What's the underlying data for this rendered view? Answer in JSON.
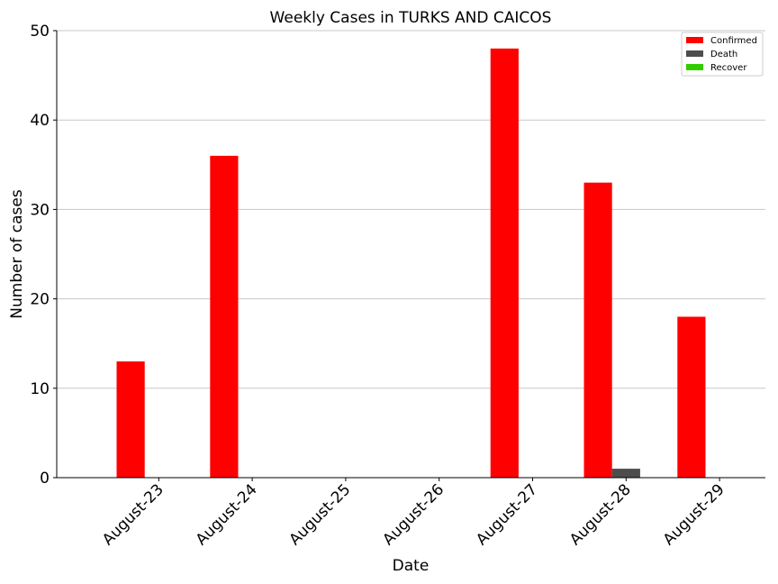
{
  "chart_data": {
    "type": "bar",
    "title": "Weekly Cases in TURKS AND CAICOS",
    "xlabel": "Date",
    "ylabel": "Number of cases",
    "categories": [
      "August-23",
      "August-24",
      "August-25",
      "August-26",
      "August-27",
      "August-28",
      "August-29"
    ],
    "series": [
      {
        "name": "Confirmed",
        "color": "#ff0000",
        "values": [
          13,
          36,
          0,
          0,
          48,
          33,
          18
        ]
      },
      {
        "name": "Death",
        "color": "#4d4d4d",
        "values": [
          0,
          0,
          0,
          0,
          0,
          1,
          0
        ]
      },
      {
        "name": "Recover",
        "color": "#33cc00",
        "values": [
          0,
          0,
          0,
          0,
          0,
          0,
          0
        ]
      }
    ],
    "ylim": [
      0,
      50
    ],
    "yticks": [
      0,
      10,
      20,
      30,
      40,
      50
    ],
    "grid": "y",
    "legend_position": "top-right"
  }
}
